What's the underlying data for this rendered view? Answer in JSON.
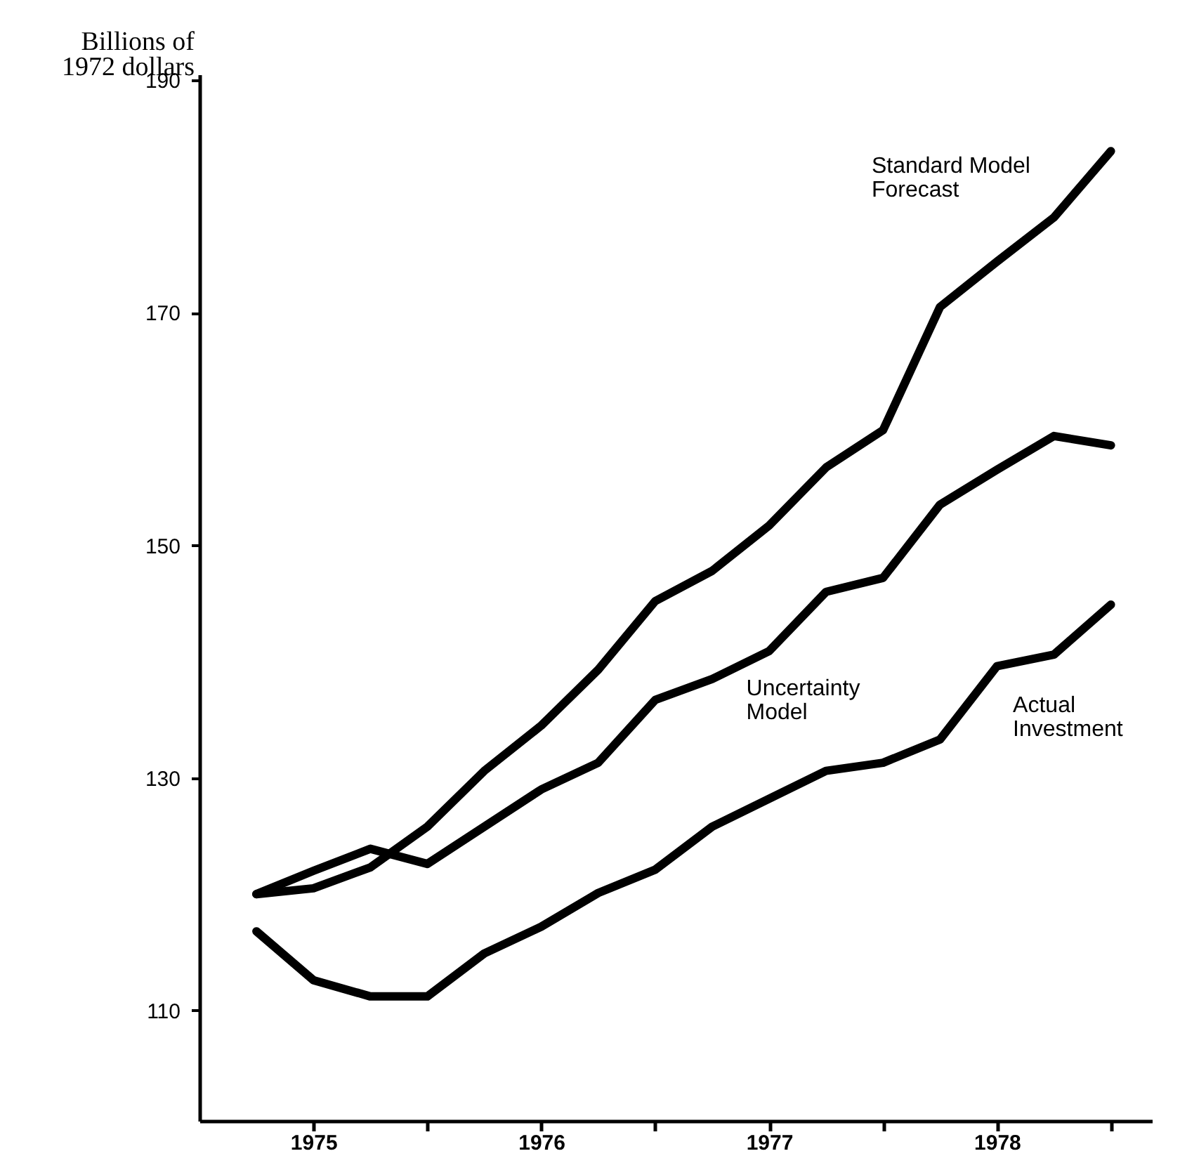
{
  "chart_data": {
    "type": "line",
    "ylabel": "Billions of 1972 dollars",
    "x": [
      1975.25,
      1975.5,
      1975.75,
      1976.0,
      1976.25,
      1976.5,
      1976.75,
      1977.0,
      1977.25,
      1977.5,
      1977.75,
      1978.0,
      1978.25,
      1978.5,
      1978.75,
      1979.0
    ],
    "series": [
      {
        "name": "Standard Model Forecast",
        "color": "#000000",
        "values": [
          120.0,
          120.5,
          122.3,
          125.8,
          130.6,
          134.5,
          139.3,
          145.2,
          147.8,
          151.7,
          156.7,
          159.9,
          170.5,
          174.4,
          178.2,
          183.9
        ]
      },
      {
        "name": "Uncertainty Model",
        "color": "#000000",
        "values": [
          120.0,
          122.0,
          123.9,
          122.6,
          125.8,
          129.0,
          131.3,
          136.7,
          138.5,
          140.9,
          146.0,
          147.2,
          153.5,
          156.5,
          159.4,
          158.6
        ]
      },
      {
        "name": "Actual Investment",
        "color": "#000000",
        "values": [
          116.8,
          112.6,
          111.2,
          111.2,
          114.9,
          117.2,
          120.1,
          122.1,
          125.8,
          128.2,
          130.6,
          131.3,
          133.3,
          139.6,
          140.6,
          144.9
        ]
      }
    ],
    "xlim": [
      1975.0,
      1979.18
    ],
    "ylim": [
      100.5,
      190.5
    ],
    "xticks": [
      {
        "value": 1975.5,
        "label": "1975"
      },
      {
        "value": 1976,
        "label": null
      },
      {
        "value": 1976.5,
        "label": "1976"
      },
      {
        "value": 1977,
        "label": null
      },
      {
        "value": 1977.5,
        "label": "1977"
      },
      {
        "value": 1978,
        "label": null
      },
      {
        "value": 1978.5,
        "label": "1978"
      },
      {
        "value": 1979,
        "label": null
      }
    ],
    "yticks": [
      110,
      130,
      150,
      170,
      190
    ],
    "line_style": "solid",
    "marker": "none"
  }
}
